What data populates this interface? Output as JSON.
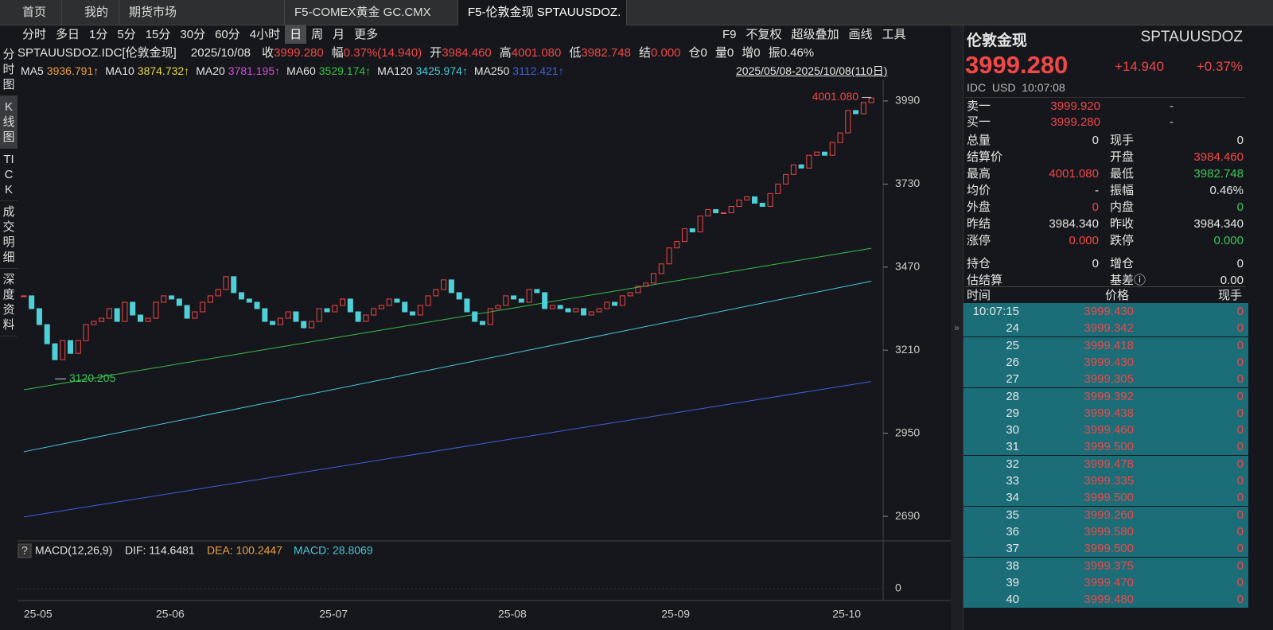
{
  "tabs": [
    "首页",
    "我的",
    "期货市场",
    "F5-COMEX黄金 GC.CMX",
    "F5-伦敦金现 SPTAUUSDOZ."
  ],
  "active_tab": 4,
  "toolbar": {
    "periods": [
      "分时",
      "多日",
      "1分",
      "5分",
      "15分",
      "30分",
      "60分",
      "4小时",
      "日",
      "周",
      "月",
      "更多"
    ],
    "selected": 8,
    "right": [
      "F9",
      "不复权",
      "超级叠加",
      "画线",
      "工具"
    ]
  },
  "side_nav": {
    "items": [
      "分时图",
      "K线图",
      "TICK",
      "成交明细",
      "深度资料"
    ],
    "selected": 1
  },
  "info": {
    "code": "SPTAUUSDOZ.IDC[伦敦金现]",
    "date": "2025/10/08",
    "items": [
      {
        "label": "收",
        "value": "3999.280",
        "color": "#f04848"
      },
      {
        "label": "幅",
        "value": "0.37%(14.940)",
        "color": "#f04848"
      },
      {
        "label": "开",
        "value": "3984.460",
        "color": "#f04848"
      },
      {
        "label": "高",
        "value": "4001.080",
        "color": "#f04848"
      },
      {
        "label": "低",
        "value": "3982.748",
        "color": "#f04848"
      },
      {
        "label": "结",
        "value": "0.000",
        "color": "#f04848"
      },
      {
        "label": "仓",
        "value": "0",
        "color": "#e6e6e6"
      },
      {
        "label": "量",
        "value": "0",
        "color": "#e6e6e6"
      },
      {
        "label": "增",
        "value": "0",
        "color": "#e6e6e6"
      },
      {
        "label": "振",
        "value": "0.46%",
        "color": "#e6e6e6"
      }
    ],
    "range": "2025/05/08-2025/10/08(110日)"
  },
  "chart_data": {
    "type": "candlestick",
    "categories": [
      "25-05",
      null,
      null,
      null,
      null,
      null,
      null,
      null,
      null,
      null,
      null,
      null,
      null,
      null,
      null,
      null,
      null,
      "25-06",
      null,
      null,
      null,
      null,
      null,
      null,
      null,
      null,
      null,
      null,
      null,
      null,
      null,
      null,
      null,
      null,
      null,
      null,
      null,
      null,
      "25-07",
      null,
      null,
      null,
      null,
      null,
      null,
      null,
      null,
      null,
      null,
      null,
      null,
      null,
      null,
      null,
      null,
      null,
      null,
      null,
      null,
      null,
      null,
      "25-08",
      null,
      null,
      null,
      null,
      null,
      null,
      null,
      null,
      null,
      null,
      null,
      null,
      null,
      null,
      null,
      null,
      null,
      null,
      null,
      null,
      "25-09",
      null,
      null,
      null,
      null,
      null,
      null,
      null,
      null,
      null,
      null,
      null,
      null,
      null,
      null,
      null,
      null,
      null,
      null,
      null,
      null,
      null,
      "25-10",
      null,
      null,
      null,
      null,
      null
    ],
    "values": [
      3380,
      3340,
      3290,
      3230,
      3180,
      3240,
      3200,
      3240,
      3290,
      3300,
      3310,
      3340,
      3300,
      3360,
      3320,
      3300,
      3310,
      3360,
      3380,
      3370,
      3350,
      3310,
      3330,
      3360,
      3380,
      3400,
      3440,
      3390,
      3370,
      3360,
      3340,
      3300,
      3290,
      3310,
      3330,
      3300,
      3280,
      3300,
      3340,
      3330,
      3350,
      3370,
      3330,
      3300,
      3320,
      3340,
      3350,
      3370,
      3360,
      3330,
      3320,
      3350,
      3380,
      3400,
      3430,
      3390,
      3370,
      3330,
      3300,
      3290,
      3340,
      3350,
      3380,
      3370,
      3360,
      3400,
      3390,
      3340,
      3350,
      3340,
      3330,
      3340,
      3320,
      3330,
      3340,
      3360,
      3350,
      3380,
      3390,
      3410,
      3420,
      3450,
      3480,
      3530,
      3550,
      3590,
      3580,
      3630,
      3650,
      3640,
      3640,
      3660,
      3680,
      3690,
      3670,
      3660,
      3700,
      3730,
      3760,
      3790,
      3780,
      3820,
      3830,
      3820,
      3860,
      3890,
      3960,
      3950,
      3985,
      3999.28
    ],
    "up_color": "#f04848",
    "down_color": "#4fd0d8",
    "ylim": [
      2613,
      4057
    ],
    "yticks": [
      2690,
      2950,
      3210,
      3470,
      3730,
      3990
    ],
    "ma": [
      {
        "name": "MA5",
        "value": "3936.791↑",
        "color": "#f0a040"
      },
      {
        "name": "MA10",
        "value": "3874.732↑",
        "color": "#e8d848"
      },
      {
        "name": "MA20",
        "value": "3781.195↑",
        "color": "#d050d8"
      },
      {
        "name": "MA60",
        "value": "3529.174↑",
        "color": "#38c048",
        "line": [
          3086,
          3529
        ]
      },
      {
        "name": "MA120",
        "value": "3425.974↑",
        "color": "#48c8d8",
        "line": [
          2892,
          3426
        ]
      },
      {
        "name": "MA250",
        "value": "3112.421↑",
        "color": "#4060e0",
        "line": [
          2688,
          3112
        ]
      }
    ],
    "high": {
      "value": 4001.08,
      "label": "4001.080"
    },
    "low": {
      "value": 3120.205,
      "label": "3120.205"
    },
    "macd": {
      "title": "MACD(12,26,9)",
      "dif": "DIF: 114.6481",
      "dea": "DEA: 100.2447",
      "macd": "MACD: 28.8069",
      "zero": "0"
    }
  },
  "quote": {
    "name": "伦敦金现",
    "code": "SPTAUUSDOZ",
    "price": "3999.280",
    "change": "+14.940",
    "pct": "+0.37%",
    "meta": "IDC  USD  10:07:08",
    "book": [
      [
        "卖一",
        "3999.920",
        "-"
      ],
      [
        "买一",
        "3999.280",
        "-"
      ]
    ],
    "stats": [
      [
        {
          "label": "总量",
          "value": "0",
          "color": "#e6e6e6"
        },
        {
          "label": "现手",
          "value": "0",
          "color": "#e6e6e6"
        }
      ],
      [
        {
          "label": "结算价"
        },
        {
          "label": "开盘",
          "value": "3984.460",
          "color": "#f04848"
        }
      ],
      [
        {
          "label": "最高",
          "value": "4001.080",
          "color": "#f04848"
        },
        {
          "label": "最低",
          "value": "3982.748",
          "color": "#3cc85a"
        }
      ],
      [
        {
          "label": "均价",
          "value": "-",
          "color": "#e6e6e6"
        },
        {
          "label": "振幅",
          "value": "0.46%",
          "color": "#e6e6e6"
        }
      ],
      [
        {
          "label": "外盘",
          "value": "0",
          "color": "#f04848"
        },
        {
          "label": "内盘",
          "value": "0",
          "color": "#3cc85a"
        }
      ],
      [
        {
          "label": "昨结",
          "value": "3984.340",
          "color": "#e6e6e6"
        },
        {
          "label": "昨收",
          "value": "3984.340",
          "color": "#e6e6e6"
        }
      ],
      [
        {
          "label": "涨停",
          "value": "0.000",
          "color": "#f04848"
        },
        {
          "label": "跌停",
          "value": "0.000",
          "color": "#3cc85a"
        }
      ],
      [
        {
          "label": "持仓",
          "value": "0",
          "color": "#e6e6e6"
        },
        {
          "label": "增仓",
          "value": "0",
          "color": "#e6e6e6"
        }
      ],
      [
        {
          "label": "估结算"
        },
        {
          "label": "基差ⓘ",
          "value": "0.00",
          "color": "#e6e6e6"
        }
      ]
    ],
    "ticks": {
      "header": [
        "时间",
        "价格",
        "现手"
      ],
      "rows": [
        [
          "10:07:15",
          "3999.430",
          "0"
        ],
        [
          "24",
          "3999.342",
          "0"
        ],
        [
          "25",
          "3999.418",
          "0"
        ],
        [
          "26",
          "3999.430",
          "0"
        ],
        [
          "27",
          "3999.305",
          "0"
        ],
        [
          "28",
          "3999.392",
          "0"
        ],
        [
          "29",
          "3999.438",
          "0"
        ],
        [
          "30",
          "3999.460",
          "0"
        ],
        [
          "31",
          "3999.500",
          "0"
        ],
        [
          "32",
          "3999.478",
          "0"
        ],
        [
          "33",
          "3999.335",
          "0"
        ],
        [
          "34",
          "3999.500",
          "0"
        ],
        [
          "35",
          "3999.260",
          "0"
        ],
        [
          "36",
          "3999.580",
          "0"
        ],
        [
          "37",
          "3999.500",
          "0"
        ],
        [
          "38",
          "3999.375",
          "0"
        ],
        [
          "39",
          "3999.470",
          "0"
        ],
        [
          "40",
          "3999.480",
          "0"
        ]
      ]
    }
  }
}
